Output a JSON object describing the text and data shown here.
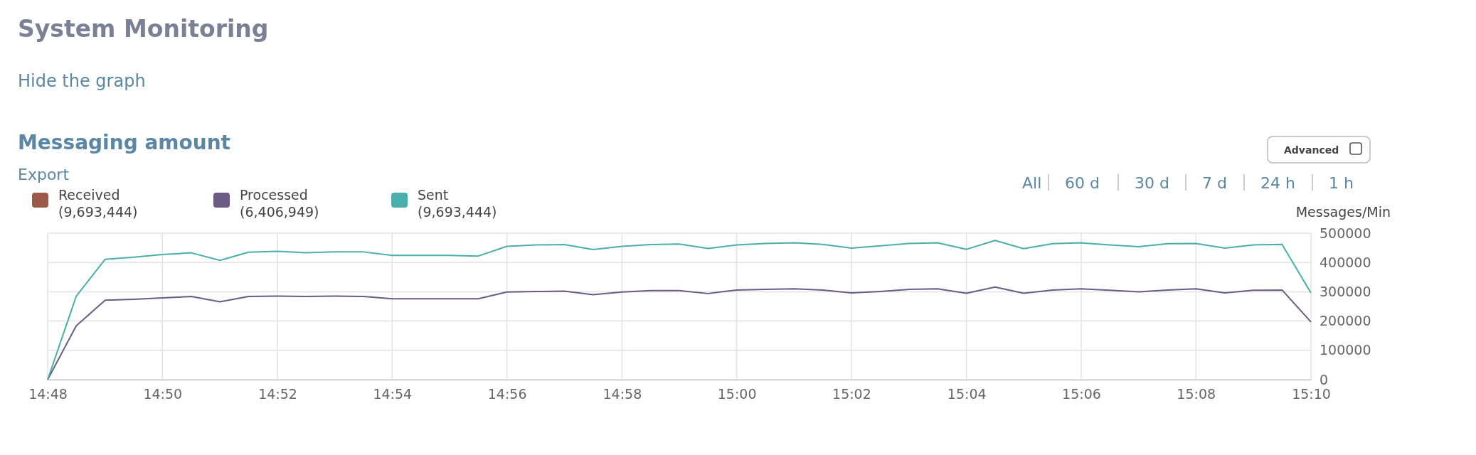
{
  "chart_data": {
    "type": "line",
    "title": "System Monitoring",
    "subtitle": "Messaging amount",
    "ylabel": "Messages/Min",
    "annotations": [
      "Hide the graph",
      "Export",
      "All",
      "60 d",
      "30 d",
      "7 d",
      "24 h",
      "1 h",
      "Advanced"
    ],
    "x": [
      14.8,
      14.8083,
      14.8167,
      14.825,
      14.8333,
      14.8417,
      14.85,
      14.8583,
      14.8667,
      14.875,
      14.8833,
      14.8917,
      14.9,
      14.9083,
      14.9167,
      14.925,
      14.9333,
      14.9417,
      14.95,
      14.9583,
      14.9667,
      14.975,
      14.9833,
      14.9917,
      15,
      15.0083,
      15.0167,
      15.025,
      15.0333,
      15.0417,
      15.05,
      15.0583,
      15.0667,
      15.075,
      15.0833,
      15.0917,
      15.1,
      15.1083,
      15.1167,
      15.125,
      15.1333,
      15.1417,
      15.15,
      15.1583,
      15.1667
    ],
    "xlim": [
      14.8,
      15.1667
    ],
    "xticks": [
      {
        "value": 14.8,
        "label": "14:48"
      },
      {
        "value": 14.8333,
        "label": "14:50"
      },
      {
        "value": 14.8667,
        "label": "14:52"
      },
      {
        "value": 14.9,
        "label": "14:54"
      },
      {
        "value": 14.9333,
        "label": "14:56"
      },
      {
        "value": 14.9667,
        "label": "14:58"
      },
      {
        "value": 15,
        "label": "15:00"
      },
      {
        "value": 15.0333,
        "label": "15:02"
      },
      {
        "value": 15.0667,
        "label": "15:04"
      },
      {
        "value": 15.1,
        "label": "15:06"
      },
      {
        "value": 15.1333,
        "label": "15:08"
      },
      {
        "value": 15.1667,
        "label": "15:10"
      }
    ],
    "ylim": [
      0,
      500000
    ],
    "yticks": [
      0,
      100000,
      200000,
      300000,
      400000,
      500000
    ],
    "grid": true,
    "legend": "top left",
    "marker": "none",
    "line_style": "solid",
    "series": [
      {
        "name": "Received (9,693,444)",
        "color": "#9b5a48",
        "values": [
          null,
          null,
          null,
          null,
          null,
          null,
          null,
          null,
          null,
          null,
          null,
          null,
          null,
          null,
          null,
          null,
          null,
          null,
          null,
          null,
          null,
          null,
          null,
          null,
          null,
          null,
          null,
          null,
          null,
          null,
          null,
          null,
          null,
          null,
          null,
          null,
          null,
          null,
          null,
          null,
          null,
          null,
          null,
          null,
          null
        ]
      },
      {
        "name": "Processed (6,406,949)",
        "color": "#6b5b85",
        "values": [
          0,
          184000,
          271000,
          274000,
          279000,
          284000,
          266000,
          284000,
          285000,
          284000,
          285000,
          284000,
          276000,
          276000,
          276000,
          276000,
          299000,
          301000,
          302000,
          290000,
          299000,
          304000,
          304000,
          294000,
          306000,
          308000,
          310000,
          306000,
          296000,
          301000,
          308000,
          310000,
          295000,
          316000,
          295000,
          306000,
          310000,
          305000,
          300000,
          306000,
          310000,
          296000,
          305000,
          306000,
          197000
        ]
      },
      {
        "name": "Sent (9,693,444)",
        "color": "#4aaeaa",
        "values": [
          0,
          285000,
          411000,
          418000,
          427000,
          433000,
          407000,
          435000,
          438000,
          433000,
          436000,
          436000,
          424000,
          424000,
          424000,
          422000,
          455000,
          460000,
          461000,
          444000,
          455000,
          461000,
          463000,
          448000,
          460000,
          465000,
          467000,
          462000,
          449000,
          457000,
          465000,
          467000,
          445000,
          475000,
          447000,
          464000,
          467000,
          460000,
          454000,
          464000,
          465000,
          449000,
          460000,
          462000,
          296000
        ]
      }
    ]
  }
}
